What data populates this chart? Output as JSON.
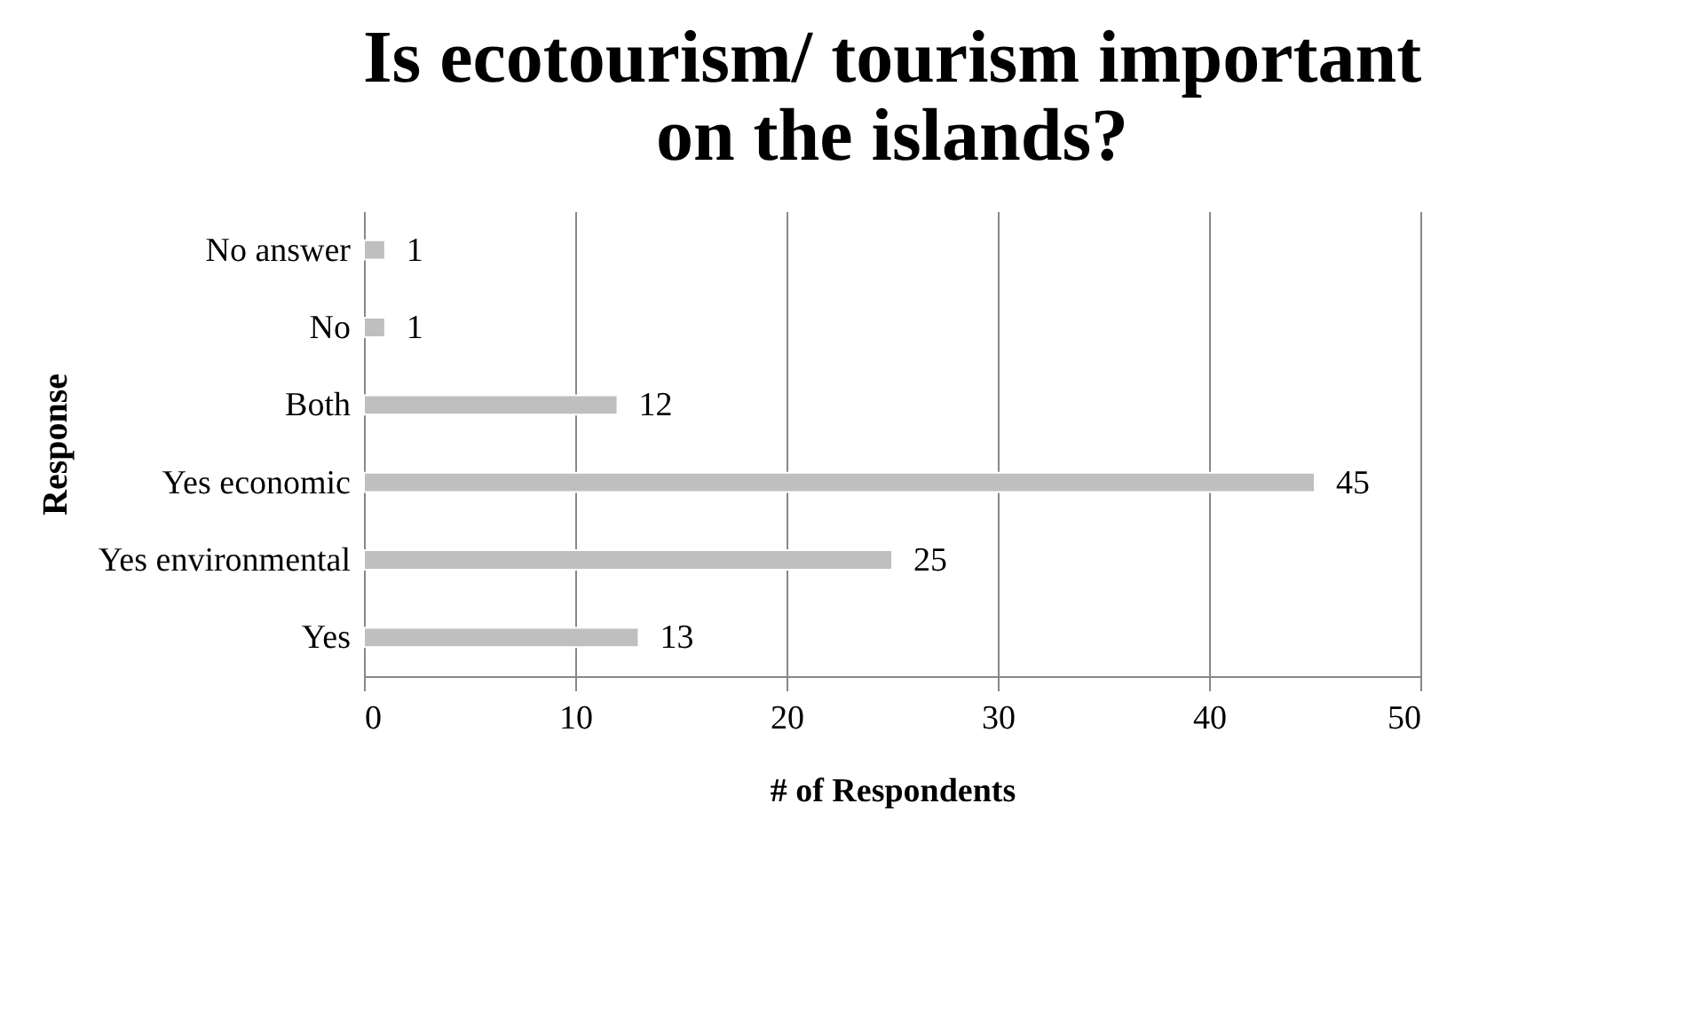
{
  "chart_data": {
    "type": "bar",
    "orientation": "horizontal",
    "title": [
      "Is ecotourism/ tourism important",
      "on the islands?"
    ],
    "xlabel": "# of Respondents",
    "ylabel": "Response",
    "categories": [
      "No answer",
      "No",
      "Both",
      "Yes economic",
      "Yes environmental",
      "Yes"
    ],
    "values": [
      1,
      1,
      12,
      45,
      25,
      13
    ],
    "color": "#bfbfbf",
    "xlim": [
      0,
      50
    ],
    "xticks": [
      0,
      10,
      20,
      30,
      40,
      50
    ],
    "grid": "x",
    "data_labels": true
  }
}
